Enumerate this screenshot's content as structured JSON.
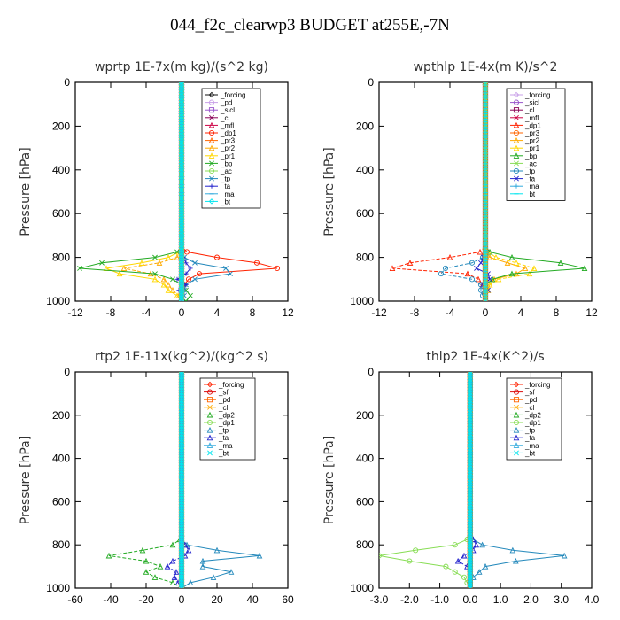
{
  "figure": {
    "title": "044_f2c_clearwp3  BUDGET at255E,-7N"
  },
  "colors": {
    "forcing": "#111111",
    "pd": "#c8a0e8",
    "sicl": "#9955cc",
    "cl": "#880055",
    "mfl": "#cc0044",
    "dp1": "#ff2200",
    "pr3": "#ff6600",
    "pr2": "#ffaa00",
    "pr1": "#ffd700",
    "bp": "#22aa22",
    "ac": "#88dd55",
    "tp": "#2288bb",
    "ta": "#2222cc",
    "ma": "#33aadd",
    "bt": "#00e5ee",
    "sf": "#dd1111",
    "dp2": "#22aa22"
  },
  "chart_data": [
    {
      "type": "line",
      "title": "wprtp  1E-7x(m kg)/(s^2 kg)",
      "ylabel": "Pressure [hPa]",
      "xlim": [
        -12,
        12
      ],
      "ylim": [
        1000,
        0
      ],
      "xticks": [
        "-12",
        "-8",
        "-4",
        "0",
        "4",
        "8",
        "12"
      ],
      "yticks": [
        "0",
        "200",
        "400",
        "600",
        "800",
        "1000"
      ],
      "legend_placement": "top-right",
      "pressure": [
        0,
        750,
        775,
        800,
        825,
        850,
        875,
        900,
        925,
        950,
        975,
        1000
      ],
      "series": [
        {
          "name": "_forcing",
          "color_key": "forcing",
          "values": [
            0,
            0,
            0,
            0,
            0,
            0,
            0,
            0,
            0,
            0,
            0,
            0
          ]
        },
        {
          "name": "_pd",
          "color_key": "pd",
          "values": [
            0,
            0,
            0,
            0,
            0,
            0,
            0,
            0,
            0,
            0,
            0,
            0
          ]
        },
        {
          "name": "_sicl",
          "color_key": "sicl",
          "values": [
            0,
            0,
            0,
            0,
            0,
            0,
            0,
            0,
            0,
            0,
            0,
            0
          ]
        },
        {
          "name": "_cl",
          "color_key": "cl",
          "values": [
            0,
            0,
            0,
            0,
            0,
            0,
            0,
            0,
            0,
            0,
            0,
            0
          ]
        },
        {
          "name": "_mfl",
          "color_key": "mfl",
          "values": [
            0,
            0,
            0,
            0,
            0,
            0,
            0,
            0,
            0,
            0,
            0,
            0
          ]
        },
        {
          "name": "_dp1",
          "color_key": "dp1",
          "values": [
            0,
            0,
            0.6,
            4,
            8.5,
            10.8,
            2,
            0.8,
            0.3,
            0,
            0,
            0
          ]
        },
        {
          "name": "_pr3",
          "color_key": "pr3",
          "values": [
            0,
            0,
            0,
            0,
            0,
            0,
            0,
            0,
            0,
            0,
            0,
            0
          ]
        },
        {
          "name": "_pr2",
          "color_key": "pr2",
          "values": [
            0,
            0,
            0,
            -0.5,
            -2.5,
            -6.5,
            -3.5,
            -2,
            -1.5,
            -1,
            -0.3,
            0
          ]
        },
        {
          "name": "_pr1",
          "color_key": "pr1",
          "values": [
            0,
            0,
            -0.3,
            -1.5,
            -4.5,
            -8.5,
            -7,
            -3,
            -2,
            -1.5,
            -0.5,
            0
          ]
        },
        {
          "name": "_bp",
          "color_key": "bp",
          "values": [
            0,
            0,
            -0.5,
            -3,
            -9,
            -11.5,
            -3,
            -1,
            0,
            0.5,
            1,
            0.5
          ]
        },
        {
          "name": "_ac",
          "color_key": "ac",
          "values": [
            0,
            0,
            0,
            0,
            0,
            0,
            0,
            0,
            0,
            0,
            0,
            0
          ]
        },
        {
          "name": "_tp",
          "color_key": "tp",
          "values": [
            0,
            0,
            0,
            0.3,
            1.5,
            5,
            5.5,
            1.5,
            0.5,
            0.3,
            0.3,
            0
          ]
        },
        {
          "name": "_ta",
          "color_key": "ta",
          "values": [
            0,
            0,
            0,
            0.2,
            0.5,
            1,
            0.5,
            -0.5,
            0.5,
            -0.3,
            0,
            0
          ]
        },
        {
          "name": "_ma",
          "color_key": "ma",
          "values": [
            0,
            0,
            0,
            0,
            0,
            0,
            0,
            0,
            0,
            0,
            0,
            0
          ]
        },
        {
          "name": "_bt",
          "color_key": "bt",
          "values": [
            0,
            0,
            0,
            0,
            0,
            0,
            0,
            0,
            0,
            0,
            0,
            0
          ]
        }
      ]
    },
    {
      "type": "line",
      "title": "wpthlp  1E-4x(m K)/s^2",
      "ylabel": "Pressure [hPa]",
      "xlim": [
        -12,
        12
      ],
      "ylim": [
        1000,
        0
      ],
      "xticks": [
        "-12",
        "-8",
        "-4",
        "0",
        "4",
        "8",
        "12"
      ],
      "yticks": [
        "0",
        "200",
        "400",
        "600",
        "800",
        "1000"
      ],
      "legend_placement": "top-right",
      "pressure": [
        0,
        750,
        775,
        800,
        825,
        850,
        875,
        900,
        925,
        950,
        975,
        1000
      ],
      "series": [
        {
          "name": "_forcing",
          "color_key": "pd",
          "values": [
            0,
            0,
            0,
            0,
            0,
            0,
            0,
            0,
            0,
            0,
            0,
            0
          ]
        },
        {
          "name": "_sicl",
          "color_key": "sicl",
          "values": [
            0,
            0,
            0,
            0,
            0,
            0,
            0,
            0,
            0,
            0,
            0,
            0
          ]
        },
        {
          "name": "_cl",
          "color_key": "cl",
          "values": [
            0,
            0,
            0,
            0,
            0,
            0,
            0,
            0,
            0,
            0,
            0,
            0
          ]
        },
        {
          "name": "_mfl",
          "color_key": "mfl",
          "values": [
            0,
            0,
            0,
            0,
            0,
            0,
            0,
            0,
            0,
            0,
            0,
            0
          ]
        },
        {
          "name": "_dp1",
          "color_key": "dp1",
          "values": [
            0,
            0,
            -0.6,
            -4,
            -8.5,
            -10.5,
            -2,
            -0.8,
            -0.3,
            0,
            0,
            0
          ]
        },
        {
          "name": "_pr3",
          "color_key": "pr3",
          "values": [
            0,
            0,
            0,
            0,
            0,
            0,
            0,
            0,
            0,
            0,
            0,
            0
          ]
        },
        {
          "name": "_pr2",
          "color_key": "pr2",
          "values": [
            0,
            0,
            0,
            0.5,
            2.5,
            4.5,
            3.5,
            1,
            0.5,
            0.3,
            0,
            0
          ]
        },
        {
          "name": "_pr1",
          "color_key": "pr1",
          "values": [
            0,
            0,
            0.3,
            1.2,
            3.5,
            5.5,
            5,
            1.5,
            0.5,
            0.3,
            0,
            0
          ]
        },
        {
          "name": "_bp",
          "color_key": "bp",
          "values": [
            0,
            0,
            0.5,
            3,
            8.5,
            11.2,
            3,
            0.8,
            0,
            0,
            0,
            0
          ]
        },
        {
          "name": "_ac",
          "color_key": "ac",
          "values": [
            0,
            0,
            0,
            0,
            0,
            0,
            0,
            0,
            0,
            0,
            0,
            0
          ]
        },
        {
          "name": "_tp",
          "color_key": "tp",
          "values": [
            0,
            0,
            0,
            -0.3,
            -1.5,
            -4.5,
            -5,
            -1.5,
            -0.5,
            -0.5,
            -0.3,
            0
          ]
        },
        {
          "name": "_ta",
          "color_key": "ta",
          "values": [
            0,
            0,
            0,
            -0.2,
            -0.5,
            -1,
            0.3,
            0.5,
            -0.3,
            0.3,
            0,
            0
          ]
        },
        {
          "name": "_ma",
          "color_key": "ma",
          "values": [
            0,
            0,
            0,
            0,
            0,
            0,
            0,
            0,
            0,
            0,
            0,
            0
          ]
        },
        {
          "name": "_bt",
          "color_key": "bt",
          "values": [
            0,
            0,
            0,
            0,
            0,
            0,
            0,
            0,
            0,
            0,
            0,
            0
          ]
        }
      ]
    },
    {
      "type": "line",
      "title": "rtp2  1E-11x(kg^2)/(kg^2 s)",
      "ylabel": "Pressure [hPa]",
      "xlim": [
        -60,
        60
      ],
      "ylim": [
        1000,
        0
      ],
      "xticks": [
        "-60",
        "-40",
        "-20",
        "0",
        "20",
        "40",
        "60"
      ],
      "yticks": [
        "0",
        "200",
        "400",
        "600",
        "800",
        "1000"
      ],
      "legend_placement": "top-right",
      "pressure": [
        0,
        750,
        775,
        800,
        825,
        850,
        875,
        900,
        925,
        950,
        975,
        1000
      ],
      "series": [
        {
          "name": "_forcing",
          "color_key": "dp1",
          "values": [
            0,
            0,
            0,
            0,
            0,
            0,
            0,
            0,
            0,
            0,
            0,
            0
          ]
        },
        {
          "name": "_sf",
          "color_key": "sf",
          "values": [
            0,
            0,
            0,
            0,
            0,
            0,
            0,
            0,
            0,
            0,
            0,
            0
          ]
        },
        {
          "name": "_pd",
          "color_key": "pr3",
          "values": [
            0,
            0,
            0,
            0,
            0,
            0,
            0,
            0,
            0,
            0,
            0,
            0
          ]
        },
        {
          "name": "_cl",
          "color_key": "pr2",
          "values": [
            0,
            0,
            0,
            0,
            0,
            0,
            0,
            0,
            0,
            0,
            0,
            0
          ]
        },
        {
          "name": "_dp2",
          "color_key": "dp2",
          "values": [
            0,
            0,
            -1,
            -5,
            -22,
            -41,
            -20,
            -12,
            -20,
            -15,
            -5,
            0
          ]
        },
        {
          "name": "_dp1",
          "color_key": "ac",
          "values": [
            0,
            0,
            0,
            0,
            0,
            0,
            0,
            0,
            0,
            0,
            0,
            0
          ]
        },
        {
          "name": "_tp",
          "color_key": "tp",
          "values": [
            0,
            0,
            0,
            3,
            20,
            44,
            12,
            12,
            28,
            18,
            5,
            0
          ]
        },
        {
          "name": "_ta",
          "color_key": "ta",
          "values": [
            0,
            0,
            0,
            2,
            4,
            2,
            -5,
            -8,
            -3,
            -4,
            -2,
            0
          ]
        },
        {
          "name": "_ma",
          "color_key": "ma",
          "values": [
            0,
            0,
            0,
            0,
            0,
            0,
            0,
            0,
            0,
            0,
            0,
            0
          ]
        },
        {
          "name": "_bt",
          "color_key": "bt",
          "values": [
            0,
            0,
            0,
            0,
            0,
            0,
            0,
            0,
            0,
            0,
            0,
            0
          ]
        }
      ]
    },
    {
      "type": "line",
      "title": "thlp2  1E-4x(K^2)/s",
      "ylabel": "Pressure [hPa]",
      "xlim": [
        -3,
        4
      ],
      "ylim": [
        1000,
        0
      ],
      "xticks": [
        "-3.0",
        "-2.0",
        "-1.0",
        "0.0",
        "1.0",
        "2.0",
        "3.0",
        "4.0"
      ],
      "yticks": [
        "0",
        "200",
        "400",
        "600",
        "800",
        "1000"
      ],
      "legend_placement": "top-right",
      "pressure": [
        0,
        750,
        775,
        800,
        825,
        850,
        875,
        900,
        925,
        950,
        975,
        1000
      ],
      "series": [
        {
          "name": "_forcing",
          "color_key": "dp1",
          "values": [
            0,
            0,
            0,
            0,
            0,
            0,
            0,
            0,
            0,
            0,
            0,
            0
          ]
        },
        {
          "name": "_sf",
          "color_key": "sf",
          "values": [
            0,
            0,
            0,
            0,
            0,
            0,
            0,
            0,
            0,
            0,
            0,
            0
          ]
        },
        {
          "name": "_pd",
          "color_key": "pr3",
          "values": [
            0,
            0,
            0,
            0,
            0,
            0,
            0,
            0,
            0,
            0,
            0,
            0
          ]
        },
        {
          "name": "_cl",
          "color_key": "pr2",
          "values": [
            0,
            0,
            0,
            0,
            0,
            0,
            0,
            0,
            0,
            0,
            0,
            0
          ]
        },
        {
          "name": "_dp2",
          "color_key": "dp2",
          "values": [
            0,
            0,
            0,
            0,
            0,
            0,
            0,
            0,
            0,
            0,
            0,
            0
          ]
        },
        {
          "name": "_dp1",
          "color_key": "ac",
          "values": [
            0,
            0,
            -0.1,
            -0.5,
            -1.8,
            -3,
            -2,
            -0.8,
            -0.5,
            -0.2,
            -0.1,
            0
          ]
        },
        {
          "name": "_tp",
          "color_key": "tp",
          "values": [
            0,
            0,
            0.1,
            0.4,
            1.4,
            3.1,
            1.5,
            0.5,
            0.3,
            0.1,
            0,
            0
          ]
        },
        {
          "name": "_ta",
          "color_key": "ta",
          "values": [
            0,
            0,
            0.1,
            0.2,
            0.1,
            -0.2,
            -0.4,
            -0.1,
            0,
            0,
            0,
            0
          ]
        },
        {
          "name": "_ma",
          "color_key": "ma",
          "values": [
            0,
            0,
            0,
            0,
            0,
            0,
            0,
            0,
            0,
            0,
            0,
            0
          ]
        },
        {
          "name": "_bt",
          "color_key": "bt",
          "values": [
            0,
            0,
            0,
            0,
            0,
            0,
            0,
            0,
            0,
            0,
            0,
            0
          ]
        }
      ]
    }
  ]
}
